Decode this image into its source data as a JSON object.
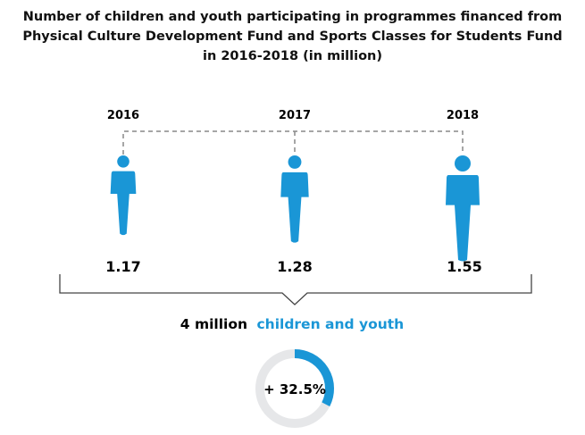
{
  "chart_data": {
    "type": "pictogram",
    "title_lines": [
      "Number of children and youth participating in programmes financed from",
      "Physical Culture Development Fund and Sports Classes for Students Fund",
      "in 2016-2018 (in million)"
    ],
    "categories": [
      "2016",
      "2017",
      "2018"
    ],
    "values": [
      1.17,
      1.28,
      1.55
    ],
    "value_labels": [
      "1.17",
      "1.28",
      "1.55"
    ],
    "total": {
      "number": "4 million",
      "highlight": "children and youth"
    },
    "change": {
      "label": "+ 32.5%",
      "percent": 32.5
    },
    "colors": {
      "accent": "#1a96d6",
      "ring_bg": "#e6e7e9",
      "text": "#111111",
      "dashed": "#888888"
    }
  }
}
